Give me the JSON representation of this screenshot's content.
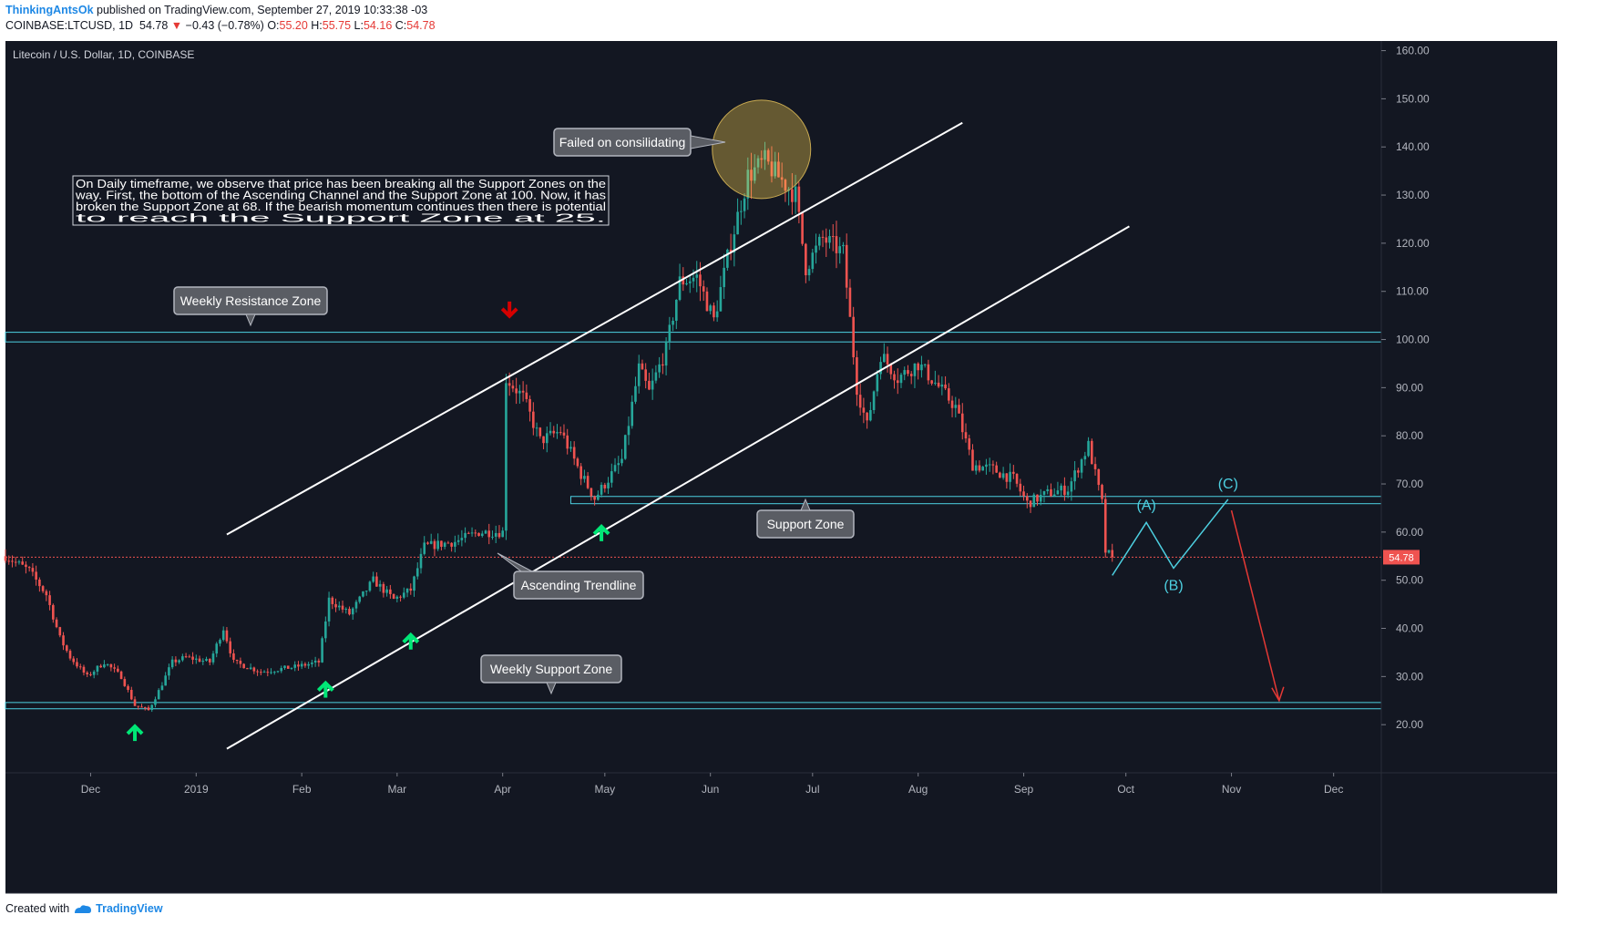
{
  "header": {
    "author": "ThinkingAntsOk",
    "published": "published on TradingView.com, September 27, 2019 10:33:38 -03",
    "symbol": "COINBASE:LTCUSD, 1D",
    "last": "54.78",
    "change_arrow": "▼",
    "change": "−0.43 (−0.78%)",
    "o_label": "O:",
    "o": "55.20",
    "h_label": "H:",
    "h": "55.75",
    "l_label": "L:",
    "l": "54.16",
    "c_label": "C:",
    "c": "54.78"
  },
  "footer": {
    "created": "Created with",
    "brand": "TradingView"
  },
  "colors": {
    "background": "#131722",
    "up": "#26a69a",
    "down": "#ef5350",
    "zone": "#4dd0e1",
    "trend": "#ffffff",
    "arrow_up": "#00e676",
    "arrow_down": "#d50000",
    "wave": "#4dd0e1",
    "projection": "#e53935"
  },
  "chart_data": {
    "type": "candlestick",
    "title": "Litecoin / U.S. Dollar, 1D, COINBASE",
    "y_axis": {
      "ticks": [
        20,
        30,
        40,
        50,
        60,
        70,
        80,
        90,
        100,
        110,
        120,
        130,
        140,
        150,
        160
      ],
      "tick_labels": [
        "20.00",
        "30.00",
        "40.00",
        "50.00",
        "60.00",
        "70.00",
        "80.00",
        "90.00",
        "100.00",
        "110.00",
        "120.00",
        "130.00",
        "140.00",
        "150.00",
        "160.00"
      ],
      "range": [
        10,
        162
      ]
    },
    "x_axis": {
      "labels": [
        "Dec",
        "2019",
        "Feb",
        "Mar",
        "Apr",
        "May",
        "Jun",
        "Jul",
        "Aug",
        "Sep",
        "Oct",
        "Nov",
        "Dec"
      ],
      "label_dates": [
        "2018-12-01",
        "2019-01-01",
        "2019-02-01",
        "2019-03-01",
        "2019-04-01",
        "2019-05-01",
        "2019-06-01",
        "2019-07-01",
        "2019-08-01",
        "2019-09-01",
        "2019-10-01",
        "2019-11-01",
        "2019-12-01"
      ],
      "range": [
        "2018-11-06",
        "2019-12-15"
      ]
    },
    "last_price": 54.78,
    "last_price_label": "54.78",
    "price_path": [
      [
        "2018-11-06",
        55
      ],
      [
        "2018-11-13",
        52
      ],
      [
        "2018-11-18",
        47
      ],
      [
        "2018-11-22",
        38
      ],
      [
        "2018-11-25",
        34
      ],
      [
        "2018-11-30",
        30
      ],
      [
        "2018-12-05",
        33
      ],
      [
        "2018-12-10",
        30
      ],
      [
        "2018-12-14",
        24
      ],
      [
        "2018-12-18",
        23
      ],
      [
        "2018-12-21",
        27
      ],
      [
        "2018-12-25",
        33
      ],
      [
        "2018-12-29",
        34
      ],
      [
        "2019-01-05",
        33
      ],
      [
        "2019-01-09",
        40
      ],
      [
        "2019-01-12",
        33
      ],
      [
        "2019-01-20",
        31
      ],
      [
        "2019-01-30",
        32
      ],
      [
        "2019-02-06",
        33
      ],
      [
        "2019-02-09",
        46
      ],
      [
        "2019-02-15",
        43
      ],
      [
        "2019-02-22",
        50
      ],
      [
        "2019-02-28",
        46
      ],
      [
        "2019-03-05",
        48
      ],
      [
        "2019-03-09",
        57
      ],
      [
        "2019-03-18",
        58
      ],
      [
        "2019-03-25",
        60
      ],
      [
        "2019-04-01",
        60
      ],
      [
        "2019-04-02",
        92
      ],
      [
        "2019-04-07",
        88
      ],
      [
        "2019-04-12",
        79
      ],
      [
        "2019-04-18",
        81
      ],
      [
        "2019-04-24",
        72
      ],
      [
        "2019-04-28",
        67
      ],
      [
        "2019-05-01",
        70
      ],
      [
        "2019-05-06",
        75
      ],
      [
        "2019-05-11",
        94
      ],
      [
        "2019-05-14",
        89
      ],
      [
        "2019-05-19",
        98
      ],
      [
        "2019-05-23",
        112
      ],
      [
        "2019-05-28",
        113
      ],
      [
        "2019-06-02",
        104
      ],
      [
        "2019-06-07",
        120
      ],
      [
        "2019-06-12",
        134
      ],
      [
        "2019-06-17",
        137
      ],
      [
        "2019-06-22",
        133
      ],
      [
        "2019-06-26",
        130
      ],
      [
        "2019-06-29",
        115
      ],
      [
        "2019-07-04",
        121
      ],
      [
        "2019-07-10",
        118
      ],
      [
        "2019-07-14",
        90
      ],
      [
        "2019-07-17",
        82
      ],
      [
        "2019-07-21",
        97
      ],
      [
        "2019-07-26",
        92
      ],
      [
        "2019-08-01",
        95
      ],
      [
        "2019-08-06",
        91
      ],
      [
        "2019-08-12",
        86
      ],
      [
        "2019-08-17",
        74
      ],
      [
        "2019-08-23",
        73
      ],
      [
        "2019-08-29",
        71
      ],
      [
        "2019-09-02",
        66
      ],
      [
        "2019-09-08",
        68
      ],
      [
        "2019-09-14",
        69
      ],
      [
        "2019-09-20",
        78
      ],
      [
        "2019-09-24",
        66
      ],
      [
        "2019-09-25",
        56
      ],
      [
        "2019-09-27",
        54.78
      ]
    ],
    "support_resistance_zones": [
      {
        "name": "Weekly Resistance Zone",
        "low": 99.5,
        "high": 101.5
      },
      {
        "name": "Support Zone",
        "low": 65.9,
        "high": 67.4
      },
      {
        "name": "Weekly Support Zone",
        "low": 23.3,
        "high": 24.6
      }
    ],
    "trendlines": [
      {
        "name": "Upper Channel",
        "from": [
          "2019-01-10",
          59.5
        ],
        "to": [
          "2019-08-14",
          145
        ]
      },
      {
        "name": "Ascending Trendline",
        "from": [
          "2019-01-10",
          15
        ],
        "to": [
          "2019-10-02",
          123.5
        ]
      }
    ],
    "wave_projection": {
      "points": [
        [
          "2019-09-27",
          51
        ],
        [
          "2019-10-07",
          62
        ],
        [
          "2019-10-15",
          52.5
        ],
        [
          "2019-10-31",
          66.8
        ]
      ],
      "labels": [
        "(A)",
        "(B)",
        "(C)"
      ],
      "target": [
        "2019-11-15",
        25
      ]
    },
    "signal_arrows": [
      {
        "dir": "up",
        "date": "2018-12-14",
        "price": 18.5
      },
      {
        "dir": "up",
        "date": "2019-02-08",
        "price": 27.5
      },
      {
        "dir": "up",
        "date": "2019-03-05",
        "price": 37.5
      },
      {
        "dir": "up",
        "date": "2019-04-30",
        "price": 60
      },
      {
        "dir": "down",
        "date": "2019-04-03",
        "price": 106
      }
    ],
    "annotations": {
      "failed": "Failed on consilidating",
      "weekly_resistance": "Weekly Resistance Zone",
      "support_zone": "Support Zone",
      "ascending_trendline": "Ascending Trendline",
      "weekly_support": "Weekly Support Zone",
      "note": "On Daily timeframe, we observe that price has been breaking all the Support Zones on the way. First, the bottom of the Ascending Channel and the Support Zone at 100. Now, it has broken the Support Zone at 68. If the bearish momentum continues then there is potential to reach the Support Zone at 25.",
      "note_lines": [
        "On Daily timeframe, we observe that price has been breaking all the Support Zones on the",
        "way. First, the bottom of the Ascending Channel and the Support Zone at 100. Now, it has",
        "broken the Support Zone at 68. If the bearish momentum continues then there is potential",
        "to reach the Support Zone at 25."
      ]
    }
  }
}
